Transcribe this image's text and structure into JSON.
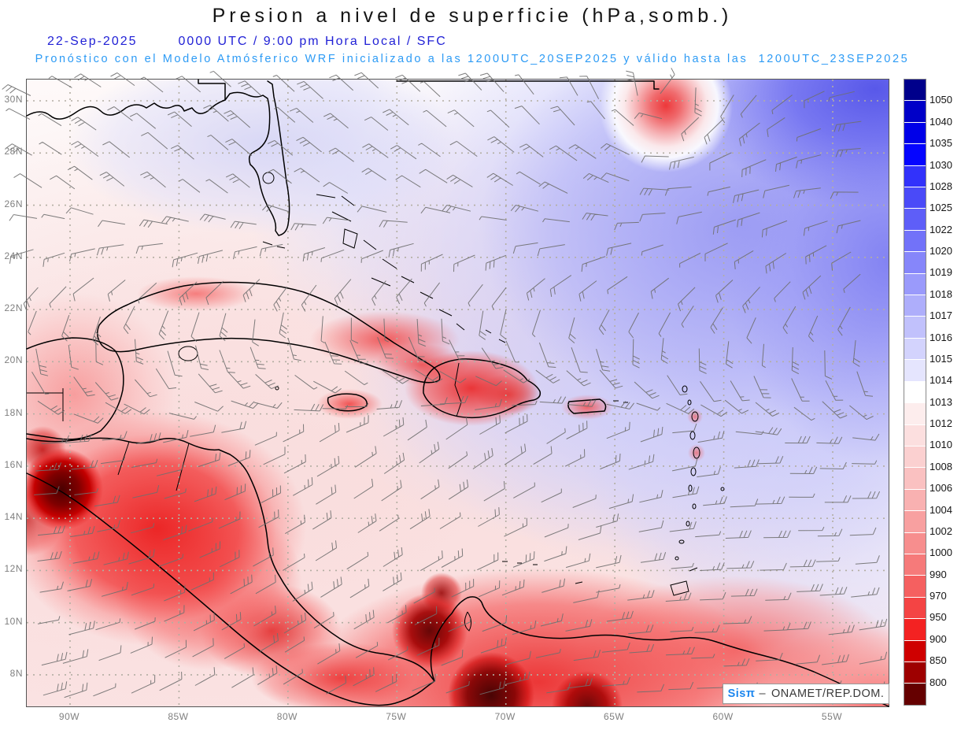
{
  "header": {
    "title": "Presion a nivel de superficie (hPa,somb.)",
    "date": "22-Sep-2025",
    "time_info": "0000 UTC / 9:00 pm Hora Local / SFC",
    "forecast_info": "Pronóstico con el Modelo Atmósferico WRF inicializado a las 1200UTC_20SEP2025 y válido hasta las  1200UTC_23SEP2025"
  },
  "map": {
    "lat_labels": [
      "30N",
      "28N",
      "26N",
      "24N",
      "22N",
      "20N",
      "18N",
      "16N",
      "14N",
      "12N",
      "10N",
      "8N"
    ],
    "lon_labels": [
      "90W",
      "85W",
      "80W",
      "75W",
      "70W",
      "65W",
      "60W",
      "55W"
    ]
  },
  "colorbar": {
    "unit": "hPa",
    "tick_labels": [
      "1050",
      "1040",
      "1035",
      "1030",
      "1028",
      "1025",
      "1022",
      "1020",
      "1019",
      "1018",
      "1017",
      "1016",
      "1015",
      "1014",
      "1013",
      "1012",
      "1010",
      "1008",
      "1006",
      "1004",
      "1002",
      "1000",
      "990",
      "970",
      "950",
      "900",
      "850",
      "800"
    ],
    "segment_colors": [
      "#00008B",
      "#0000C8",
      "#0000E8",
      "#0505FF",
      "#3232FB",
      "#4A4AF8",
      "#5E5EF8",
      "#7272F9",
      "#8686FA",
      "#9A9AFB",
      "#AEAEFB",
      "#C1C1FC",
      "#D3D3FD",
      "#E5E5FE",
      "#FFFFFF",
      "#FDEDED",
      "#FCDFDF",
      "#FBD0D0",
      "#FAC1C1",
      "#F9B1B1",
      "#F8A0A0",
      "#F78E8E",
      "#F67A7A",
      "#F56060",
      "#F44444",
      "#F32222",
      "#CF0000",
      "#9E0000",
      "#650000"
    ]
  },
  "watermark": {
    "brand": "Sisπ",
    "separator": "–",
    "org": "ONAMET/REP.DOM."
  },
  "colors": {
    "date_blue": "#2121D6",
    "forecast_cyan": "#2D9BF5",
    "axis_gray": "#7F7F7F",
    "coast_black": "#000000",
    "barb_gray": "#6F6F6F",
    "brand_blue": "#1C86EE"
  }
}
